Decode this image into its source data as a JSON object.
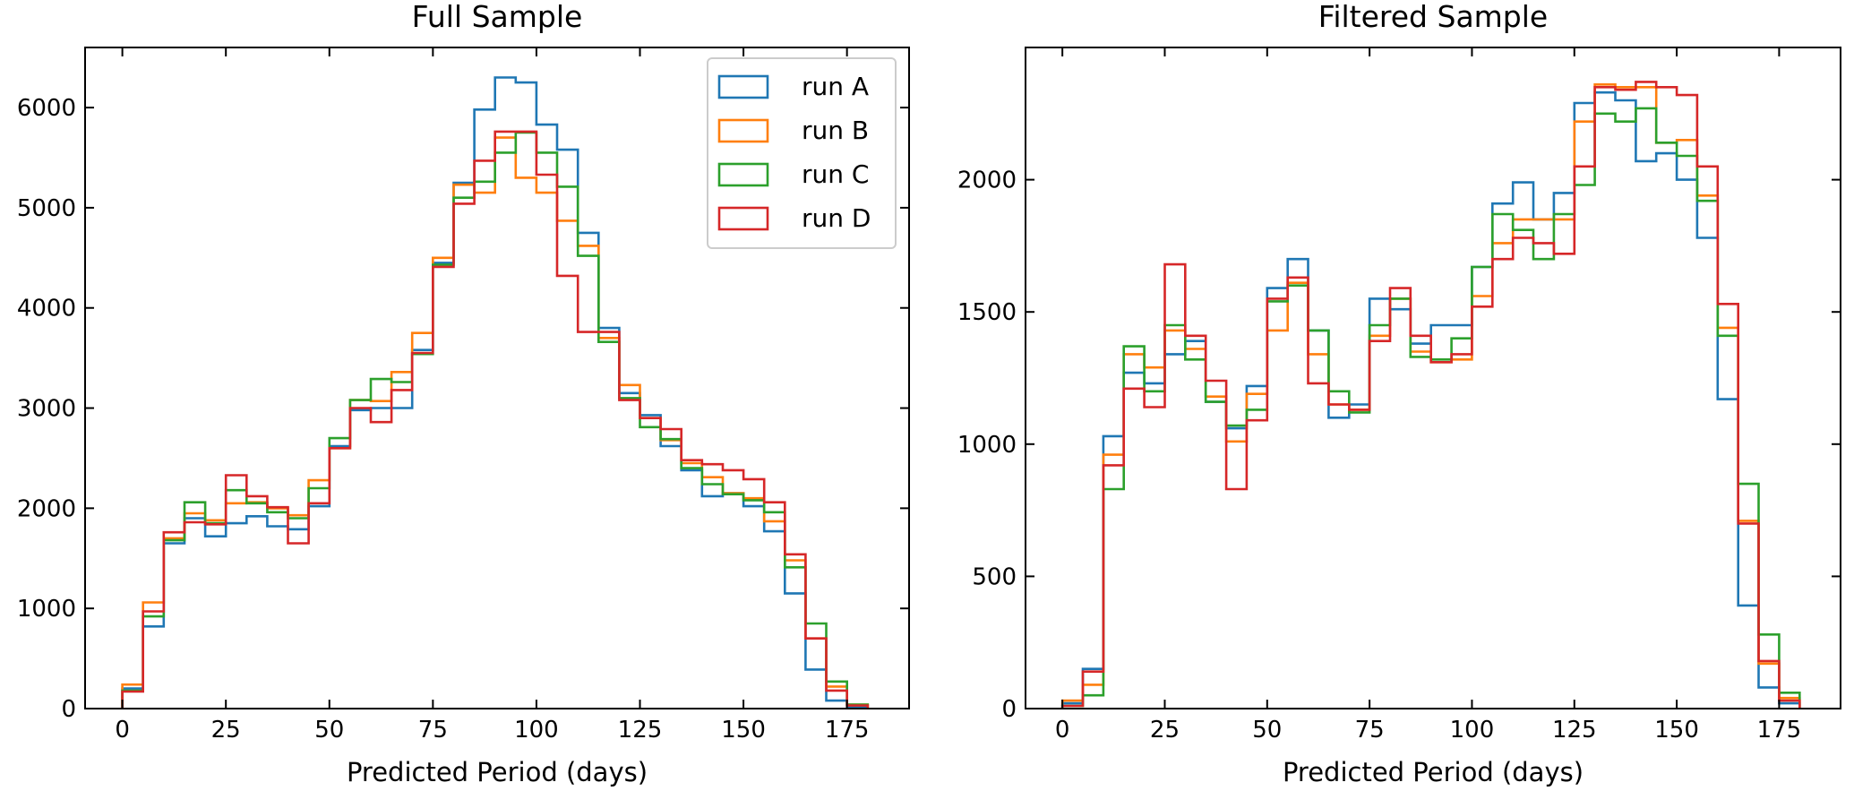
{
  "chart_data": [
    {
      "type": "step-histogram",
      "title": "Full Sample",
      "xlabel": "Predicted Period (days)",
      "ylabel": "",
      "xlim": [
        -9,
        190
      ],
      "ylim": [
        0,
        6600
      ],
      "xticks": [
        0,
        25,
        50,
        75,
        100,
        125,
        150,
        175
      ],
      "yticks": [
        0,
        1000,
        2000,
        3000,
        4000,
        5000,
        6000
      ],
      "xtick_labels": [
        "0",
        "25",
        "50",
        "75",
        "100",
        "125",
        "150",
        "175"
      ],
      "ytick_labels": [
        "0",
        "1000",
        "2000",
        "3000",
        "4000",
        "5000",
        "6000"
      ],
      "bin_edges": [
        0,
        5,
        10,
        15,
        20,
        25,
        30,
        35,
        40,
        45,
        50,
        55,
        60,
        65,
        70,
        75,
        80,
        85,
        90,
        95,
        100,
        105,
        110,
        115,
        120,
        125,
        130,
        135,
        140,
        145,
        150,
        155,
        160,
        165,
        170,
        175,
        180
      ],
      "legend": {
        "position": "top-right",
        "entries": [
          "run A",
          "run B",
          "run C",
          "run D"
        ]
      },
      "series": [
        {
          "name": "run A",
          "color": "#1f77b4",
          "values": [
            200,
            820,
            1650,
            1900,
            1720,
            1850,
            1920,
            1820,
            1790,
            2020,
            2620,
            2980,
            3000,
            3000,
            3580,
            4450,
            5250,
            5980,
            6300,
            6250,
            5830,
            5580,
            4750,
            3800,
            3150,
            2930,
            2620,
            2380,
            2120,
            2150,
            2020,
            1770,
            1150,
            390,
            80,
            20
          ]
        },
        {
          "name": "run B",
          "color": "#ff7f0e",
          "values": [
            240,
            1060,
            1700,
            1950,
            1880,
            2050,
            2060,
            2000,
            1930,
            2280,
            2600,
            3080,
            3070,
            3360,
            3750,
            4500,
            5230,
            5150,
            5700,
            5300,
            5150,
            4870,
            4620,
            3700,
            3230,
            2900,
            2680,
            2450,
            2310,
            2150,
            2100,
            1870,
            1480,
            700,
            220,
            40
          ]
        },
        {
          "name": "run C",
          "color": "#2ca02c",
          "values": [
            180,
            920,
            1680,
            2060,
            1850,
            2180,
            2050,
            1960,
            1900,
            2200,
            2700,
            3080,
            3290,
            3260,
            3540,
            4430,
            5100,
            5260,
            5550,
            5750,
            5550,
            5210,
            4520,
            3660,
            3100,
            2810,
            2690,
            2400,
            2240,
            2140,
            2080,
            1960,
            1410,
            850,
            270,
            40
          ]
        },
        {
          "name": "run D",
          "color": "#d62728",
          "values": [
            170,
            970,
            1760,
            1860,
            1840,
            2330,
            2120,
            2010,
            1650,
            2050,
            2600,
            3000,
            2860,
            3180,
            3550,
            4410,
            5040,
            5470,
            5760,
            5760,
            5330,
            4320,
            3760,
            3760,
            3080,
            2900,
            2790,
            2480,
            2440,
            2380,
            2290,
            2060,
            1540,
            700,
            180,
            30
          ]
        }
      ]
    },
    {
      "type": "step-histogram",
      "title": "Filtered Sample",
      "xlabel": "Predicted Period (days)",
      "ylabel": "",
      "xlim": [
        -9,
        190
      ],
      "ylim": [
        0,
        2500
      ],
      "xticks": [
        0,
        25,
        50,
        75,
        100,
        125,
        150,
        175
      ],
      "yticks": [
        0,
        500,
        1000,
        1500,
        2000
      ],
      "xtick_labels": [
        "0",
        "25",
        "50",
        "75",
        "100",
        "125",
        "150",
        "175"
      ],
      "ytick_labels": [
        "0",
        "500",
        "1000",
        "1500",
        "2000"
      ],
      "bin_edges": [
        0,
        5,
        10,
        15,
        20,
        25,
        30,
        35,
        40,
        45,
        50,
        55,
        60,
        65,
        70,
        75,
        80,
        85,
        90,
        95,
        100,
        105,
        110,
        115,
        120,
        125,
        130,
        135,
        140,
        145,
        150,
        155,
        160,
        165,
        170,
        175,
        180
      ],
      "series": [
        {
          "name": "run A",
          "color": "#1f77b4",
          "values": [
            20,
            150,
            1030,
            1270,
            1230,
            1340,
            1390,
            1160,
            1060,
            1220,
            1590,
            1700,
            1430,
            1100,
            1150,
            1550,
            1510,
            1380,
            1450,
            1450,
            1670,
            1910,
            1990,
            1850,
            1950,
            2290,
            2330,
            2300,
            2070,
            2100,
            2000,
            1780,
            1170,
            390,
            80,
            20
          ]
        },
        {
          "name": "run B",
          "color": "#ff7f0e",
          "values": [
            30,
            90,
            960,
            1340,
            1290,
            1430,
            1360,
            1180,
            1010,
            1190,
            1430,
            1610,
            1340,
            1150,
            1130,
            1410,
            1550,
            1350,
            1310,
            1320,
            1560,
            1760,
            1850,
            1850,
            1850,
            2220,
            2360,
            2350,
            2350,
            2140,
            2150,
            1940,
            1440,
            710,
            170,
            40
          ]
        },
        {
          "name": "run C",
          "color": "#2ca02c",
          "values": [
            10,
            50,
            830,
            1370,
            1200,
            1450,
            1320,
            1160,
            1070,
            1130,
            1540,
            1600,
            1430,
            1200,
            1120,
            1450,
            1550,
            1330,
            1320,
            1400,
            1670,
            1870,
            1810,
            1700,
            1870,
            1980,
            2250,
            2220,
            2270,
            2140,
            2090,
            1920,
            1410,
            850,
            280,
            60
          ]
        },
        {
          "name": "run D",
          "color": "#d62728",
          "values": [
            10,
            140,
            920,
            1210,
            1140,
            1680,
            1410,
            1240,
            830,
            1090,
            1550,
            1630,
            1230,
            1150,
            1130,
            1390,
            1590,
            1410,
            1310,
            1340,
            1520,
            1700,
            1780,
            1760,
            1720,
            2050,
            2350,
            2340,
            2370,
            2350,
            2320,
            2050,
            1530,
            700,
            180,
            30
          ]
        }
      ]
    }
  ]
}
